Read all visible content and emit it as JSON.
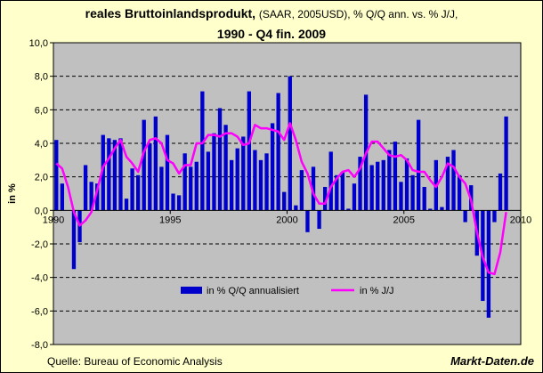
{
  "header": {
    "title_bold": "reales Bruttoinlandsprodukt,",
    "title_normal": "(SAAR, 2005USD), % Q/Q ann. vs. % J/J,",
    "title_line2": "1990 - Q4 fin. 2009"
  },
  "footer": {
    "source": "Quelle: Bureau of Economic Analysis",
    "brand": "Markt-Daten.de"
  },
  "colors": {
    "background": "#ffffcc",
    "plot_background": "#c0c0c0",
    "bars": "#0000cc",
    "line": "#ff00ff"
  },
  "chart_data": {
    "type": "bar+line",
    "ylabel": "in %",
    "ylim": [
      -8,
      10
    ],
    "ytick_step": 2,
    "yticklabels": [
      "10,0",
      "8,0",
      "6,0",
      "4,0",
      "2,0",
      "0,0",
      "-2,0",
      "-4,0",
      "-6,0",
      "-8,0"
    ],
    "x_start": 1990,
    "x_periods": 80,
    "xticks": [
      {
        "label": "1990",
        "index": 0
      },
      {
        "label": "1995",
        "index": 20
      },
      {
        "label": "2000",
        "index": 40
      },
      {
        "label": "2005",
        "index": 60
      },
      {
        "label": "2010",
        "index": 80
      }
    ],
    "grid": true,
    "legend_position": "bottom-center",
    "series": [
      {
        "name": "in % Q/Q annualisiert",
        "type": "bar",
        "values": [
          4.2,
          1.6,
          0.0,
          -3.5,
          -1.9,
          2.7,
          1.7,
          1.6,
          4.5,
          4.3,
          4.2,
          4.3,
          0.7,
          2.5,
          2.1,
          5.4,
          4.0,
          5.6,
          2.6,
          4.5,
          1.0,
          0.9,
          3.4,
          2.6,
          2.9,
          7.1,
          3.5,
          4.6,
          6.1,
          5.1,
          3.0,
          3.7,
          4.4,
          7.1,
          3.6,
          3.0,
          3.4,
          5.2,
          7.0,
          1.1,
          8.0,
          0.3,
          2.4,
          -1.3,
          2.6,
          -1.1,
          1.4,
          3.5,
          2.1,
          2.3,
          0.1,
          1.6,
          3.2,
          6.9,
          2.7,
          2.9,
          3.0,
          3.6,
          4.1,
          1.7,
          3.1,
          2.1,
          5.4,
          1.4,
          0.1,
          3.0,
          0.2,
          3.2,
          3.6,
          2.1,
          -0.7,
          1.5,
          -2.7,
          -5.4,
          -6.4,
          -0.7,
          2.2,
          5.6,
          0.0,
          0.0
        ]
      },
      {
        "name": "in % J/J",
        "type": "line",
        "values": [
          2.8,
          2.5,
          1.4,
          -0.1,
          -0.9,
          -0.6,
          -0.1,
          1.2,
          2.6,
          3.1,
          3.7,
          4.2,
          3.2,
          2.8,
          2.3,
          3.5,
          4.2,
          4.3,
          4.0,
          3.0,
          2.8,
          2.2,
          2.7,
          2.7,
          4.0,
          4.0,
          4.5,
          4.5,
          4.4,
          4.6,
          4.6,
          4.4,
          3.9,
          4.0,
          5.1,
          4.9,
          4.9,
          4.8,
          4.7,
          4.2,
          5.2,
          4.2,
          2.9,
          2.2,
          1.0,
          0.4,
          0.4,
          1.4,
          1.9,
          2.3,
          2.4,
          2.0,
          2.5,
          3.4,
          4.1,
          4.1,
          3.7,
          3.3,
          3.2,
          3.3,
          3.0,
          2.4,
          2.3,
          2.3,
          1.8,
          1.4,
          2.0,
          2.8,
          2.6,
          2.0,
          1.6,
          0.6,
          -1.3,
          -2.8,
          -3.7,
          -3.8,
          -2.5,
          -0.1
        ]
      }
    ]
  }
}
